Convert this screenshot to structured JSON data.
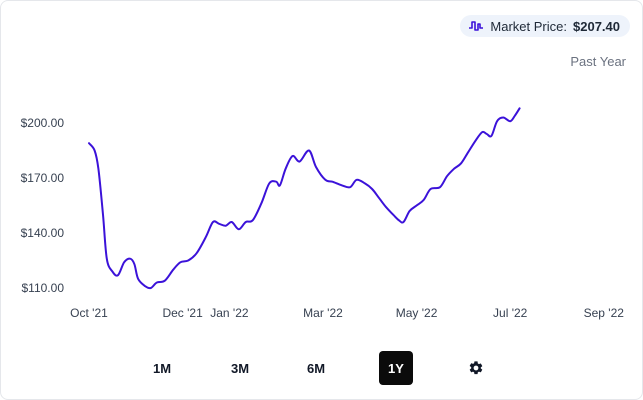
{
  "legend": {
    "icon": "price-line-icon",
    "label": "Market Price:",
    "value": "$207.40"
  },
  "range_label": "Past Year",
  "range_buttons": [
    {
      "label": "1M",
      "active": false
    },
    {
      "label": "3M",
      "active": false
    },
    {
      "label": "6M",
      "active": false
    },
    {
      "label": "1Y",
      "active": true
    }
  ],
  "settings_icon": "gear-icon",
  "colors": {
    "line": "#3b12d9",
    "active_button": "#0b0b0b",
    "legend_bg": "#eef3fb"
  },
  "chart_data": {
    "type": "line",
    "ylim": [
      110,
      210
    ],
    "y_ticks": [
      {
        "value": 200,
        "label": "$200.00"
      },
      {
        "value": 170,
        "label": "$170.00"
      },
      {
        "value": 140,
        "label": "$140.00"
      },
      {
        "value": 110,
        "label": "$110.00"
      }
    ],
    "x_ticks": [
      {
        "x": 0,
        "label": "Oct '21"
      },
      {
        "x": 2,
        "label": "Dec '21"
      },
      {
        "x": 3,
        "label": "Jan '22"
      },
      {
        "x": 5,
        "label": "Mar '22"
      },
      {
        "x": 7,
        "label": "May '22"
      },
      {
        "x": 9,
        "label": "Jul '22"
      },
      {
        "x": 11,
        "label": "Sep '22"
      }
    ],
    "series": [
      {
        "values": [
          [
            0.0,
            189
          ],
          [
            0.12,
            185
          ],
          [
            0.2,
            175
          ],
          [
            0.3,
            150
          ],
          [
            0.38,
            126
          ],
          [
            0.5,
            119
          ],
          [
            0.62,
            117
          ],
          [
            0.75,
            124
          ],
          [
            0.88,
            126
          ],
          [
            0.97,
            123
          ],
          [
            1.05,
            115
          ],
          [
            1.2,
            111
          ],
          [
            1.32,
            110
          ],
          [
            1.45,
            113
          ],
          [
            1.62,
            114
          ],
          [
            1.8,
            120
          ],
          [
            1.95,
            124
          ],
          [
            2.12,
            125
          ],
          [
            2.3,
            129
          ],
          [
            2.5,
            138
          ],
          [
            2.65,
            146
          ],
          [
            2.78,
            145
          ],
          [
            2.92,
            144
          ],
          [
            3.05,
            146
          ],
          [
            3.2,
            142
          ],
          [
            3.35,
            146
          ],
          [
            3.5,
            147
          ],
          [
            3.68,
            156
          ],
          [
            3.85,
            167
          ],
          [
            4.0,
            168
          ],
          [
            4.08,
            166
          ],
          [
            4.2,
            175
          ],
          [
            4.35,
            182
          ],
          [
            4.5,
            179
          ],
          [
            4.7,
            185
          ],
          [
            4.85,
            176
          ],
          [
            5.05,
            169
          ],
          [
            5.2,
            168
          ],
          [
            5.4,
            166
          ],
          [
            5.58,
            165
          ],
          [
            5.72,
            169
          ],
          [
            5.9,
            167
          ],
          [
            6.05,
            164
          ],
          [
            6.2,
            159
          ],
          [
            6.35,
            154
          ],
          [
            6.5,
            150
          ],
          [
            6.62,
            147
          ],
          [
            6.72,
            146
          ],
          [
            6.85,
            152
          ],
          [
            7.0,
            155
          ],
          [
            7.15,
            158
          ],
          [
            7.3,
            164
          ],
          [
            7.5,
            165
          ],
          [
            7.65,
            171
          ],
          [
            7.8,
            175
          ],
          [
            7.95,
            178
          ],
          [
            8.1,
            184
          ],
          [
            8.25,
            190
          ],
          [
            8.4,
            195
          ],
          [
            8.5,
            194
          ],
          [
            8.6,
            193
          ],
          [
            8.72,
            201
          ],
          [
            8.85,
            203
          ],
          [
            9.0,
            201
          ],
          [
            9.1,
            204
          ],
          [
            9.2,
            208
          ]
        ]
      }
    ]
  }
}
